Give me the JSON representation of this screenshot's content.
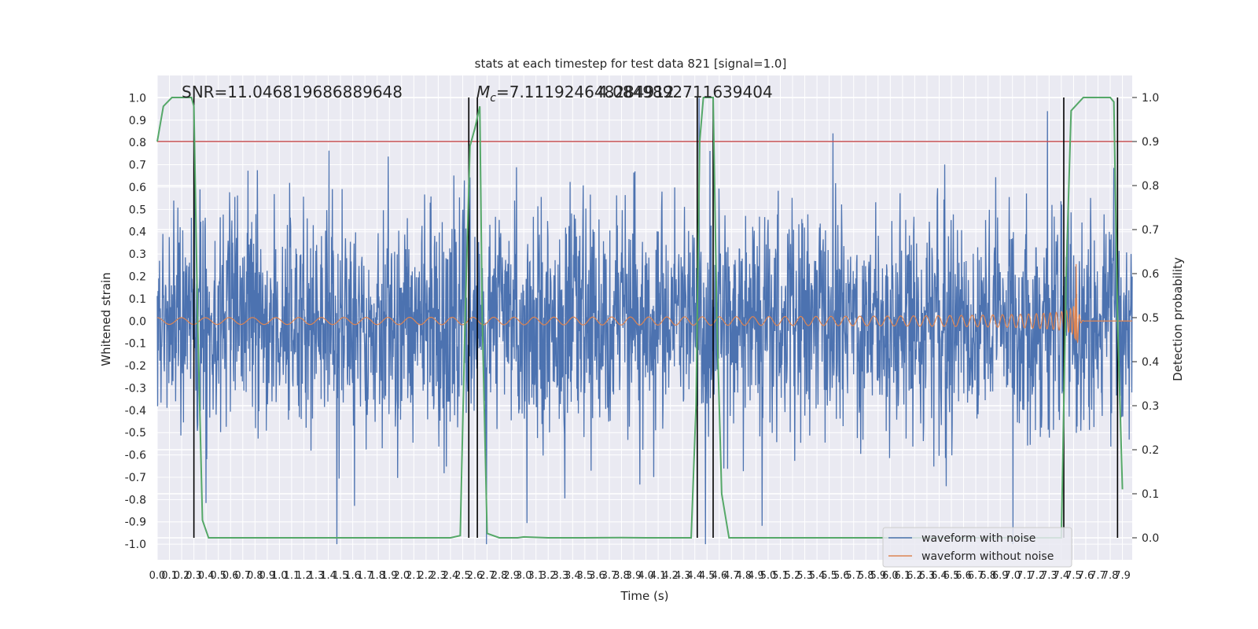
{
  "chart_data": {
    "type": "line",
    "title": "stats at each timestep for test data 821 [signal=1.0]",
    "xlabel": "Time (s)",
    "ylabel": "Whitened strain",
    "y2label": "Detection probability",
    "xlim": [
      0.0,
      7.98
    ],
    "ylim": [
      -1.07,
      1.1
    ],
    "y2lim": [
      -0.05,
      1.05
    ],
    "x_ticks": [
      "0.0",
      "0.1",
      "0.2",
      "0.3",
      "0.4",
      "0.5",
      "0.6",
      "0.7",
      "0.8",
      "0.9",
      "1.0",
      "1.1",
      "1.2",
      "1.3",
      "1.4",
      "1.5",
      "1.6",
      "1.7",
      "1.8",
      "1.9",
      "2.0",
      "2.1",
      "2.2",
      "2.3",
      "2.4",
      "2.5",
      "2.6",
      "2.7",
      "2.8",
      "2.9",
      "3.0",
      "3.1",
      "3.2",
      "3.3",
      "3.4",
      "3.5",
      "3.6",
      "3.7",
      "3.8",
      "3.9",
      "4.0",
      "4.1",
      "4.2",
      "4.3",
      "4.4",
      "4.5",
      "4.6",
      "4.7",
      "4.8",
      "4.9",
      "5.0",
      "5.1",
      "5.2",
      "5.3",
      "5.4",
      "5.5",
      "5.6",
      "5.7",
      "5.8",
      "5.9",
      "6.0",
      "6.1",
      "6.2",
      "6.3",
      "6.4",
      "6.5",
      "6.6",
      "6.7",
      "6.8",
      "6.9",
      "7.0",
      "7.1",
      "7.2",
      "7.3",
      "7.4",
      "7.5",
      "7.6",
      "7.7",
      "7.8",
      "7.9"
    ],
    "y_ticks": [
      "-1.0",
      "-0.9",
      "-0.8",
      "-0.7",
      "-0.6",
      "-0.5",
      "-0.4",
      "-0.3",
      "-0.2",
      "-0.1",
      "0.0",
      "0.1",
      "0.2",
      "0.3",
      "0.4",
      "0.5",
      "0.6",
      "0.7",
      "0.8",
      "0.9",
      "1.0"
    ],
    "y2_ticks": [
      "0.0",
      "0.1",
      "0.2",
      "0.3",
      "0.4",
      "0.5",
      "0.6",
      "0.7",
      "0.8",
      "0.9",
      "1.0"
    ],
    "annotations": {
      "snr": "SNR=11.046819686889648",
      "mc_symbol": "M",
      "mc_sub": "c",
      "mc_value": "=7.111924648284912",
      "mc_overlap": "4.0849892711639404"
    },
    "threshold": {
      "y2": 0.9,
      "color": "#c44e52"
    },
    "event_markers_x": [
      0.3,
      2.55,
      2.62,
      4.42,
      4.55,
      7.42,
      7.86
    ],
    "series": [
      {
        "name": "waveform with noise",
        "color": "#4c72b0",
        "noise_sigma": 0.24,
        "spike_max": 1.0
      },
      {
        "name": "waveform without noise",
        "color": "#dd8452",
        "amplitude_start": 0.015,
        "amplitude_peak": 0.29,
        "merger_x": 7.5
      },
      {
        "name": "detection probability",
        "color": "#55a868",
        "axis": "y2",
        "x": [
          0.0,
          0.05,
          0.12,
          0.2,
          0.28,
          0.3,
          0.33,
          0.37,
          0.42,
          0.5,
          1.0,
          2.0,
          2.4,
          2.48,
          2.52,
          2.56,
          2.6,
          2.64,
          2.66,
          2.7,
          2.8,
          2.95,
          3.0,
          3.2,
          3.5,
          3.8,
          4.0,
          4.2,
          4.37,
          4.41,
          4.44,
          4.47,
          4.55,
          4.58,
          4.62,
          4.68,
          4.74,
          5.0,
          6.0,
          7.0,
          7.4,
          7.44,
          7.48,
          7.58,
          7.72,
          7.8,
          7.83,
          7.86,
          7.9
        ],
        "y": [
          0.9,
          0.98,
          1.0,
          1.0,
          1.0,
          0.98,
          0.5,
          0.04,
          0.0,
          0.0,
          0.0,
          0.0,
          0.0,
          0.005,
          0.5,
          0.89,
          0.93,
          0.98,
          0.5,
          0.01,
          0.0,
          0.0,
          0.002,
          0.0,
          0.0,
          0.0005,
          0.0,
          0.0,
          0.0,
          0.3,
          0.9,
          1.0,
          1.0,
          0.5,
          0.1,
          0.0,
          0.0,
          0.0,
          0.0,
          0.0,
          0.0,
          0.6,
          0.97,
          1.0,
          1.0,
          1.0,
          0.99,
          0.5,
          0.11
        ]
      }
    ],
    "legend": {
      "placement": "lower-right",
      "entries": [
        "waveform with noise",
        "waveform without noise"
      ]
    }
  }
}
